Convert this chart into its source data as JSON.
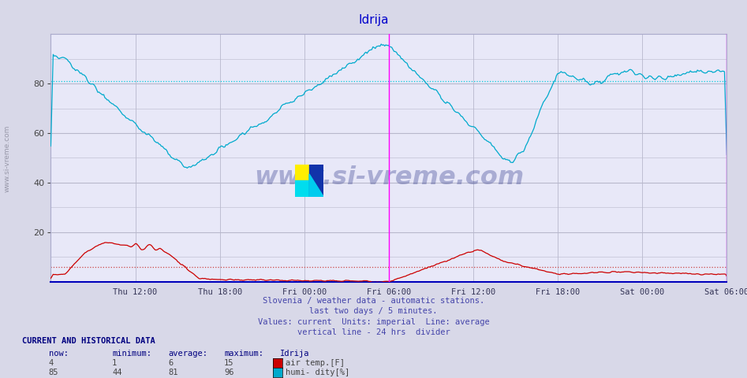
{
  "title": "Idrija",
  "title_color": "#0000cc",
  "bg_color": "#d8d8e8",
  "plot_bg_color": "#e8e8f8",
  "grid_color": "#b8b8cc",
  "x_ticks_labels": [
    "Thu 12:00",
    "Thu 18:00",
    "Fri 00:00",
    "Fri 06:00",
    "Fri 12:00",
    "Fri 18:00",
    "Sat 00:00",
    "Sat 06:00"
  ],
  "x_ticks_pos": [
    0.125,
    0.25,
    0.375,
    0.5,
    0.625,
    0.75,
    0.875,
    1.0
  ],
  "y_min": 0,
  "y_max": 100,
  "y_ticks": [
    20,
    40,
    60,
    80
  ],
  "humidity_color": "#00aacc",
  "temp_color": "#cc0000",
  "avg_humidity_color": "#00ccdd",
  "avg_temp_color": "#cc4444",
  "vertical_line_color": "#ff00ff",
  "vline1_x": 0.5,
  "vline2_x": 1.0,
  "watermark_text": "www.si-vreme.com",
  "watermark_color": "#1a237e",
  "watermark_alpha": 0.3,
  "subtitle_lines": [
    "Slovenia / weather data - automatic stations.",
    "last two days / 5 minutes.",
    "Values: current  Units: imperial  Line: average",
    "vertical line - 24 hrs  divider"
  ],
  "subtitle_color": "#4444aa",
  "footer_label": "CURRENT AND HISTORICAL DATA",
  "footer_color": "#000080",
  "footer_cols": [
    "now:",
    "minimum:",
    "average:",
    "maximum:",
    "Idrija"
  ],
  "temp_row": [
    "4",
    "1",
    "6",
    "15",
    "air temp.[F]"
  ],
  "humi_row": [
    "85",
    "44",
    "81",
    "96",
    "humi- dity[%]"
  ],
  "temp_avg": 6,
  "humi_avg": 81,
  "ylabel_text": "www.si-vreme.com",
  "ylabel_color": "#888899"
}
